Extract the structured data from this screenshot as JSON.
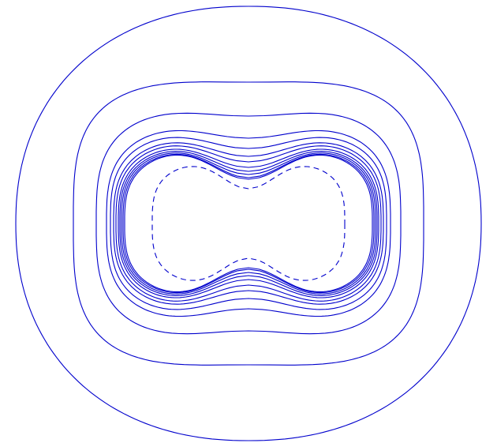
{
  "diagram": {
    "kind": "contour-plot",
    "line_color": "#0000cc",
    "solid_contour_count": 12,
    "dashed_contour_count": 1,
    "axes_shown": false,
    "labels_shown": false
  }
}
